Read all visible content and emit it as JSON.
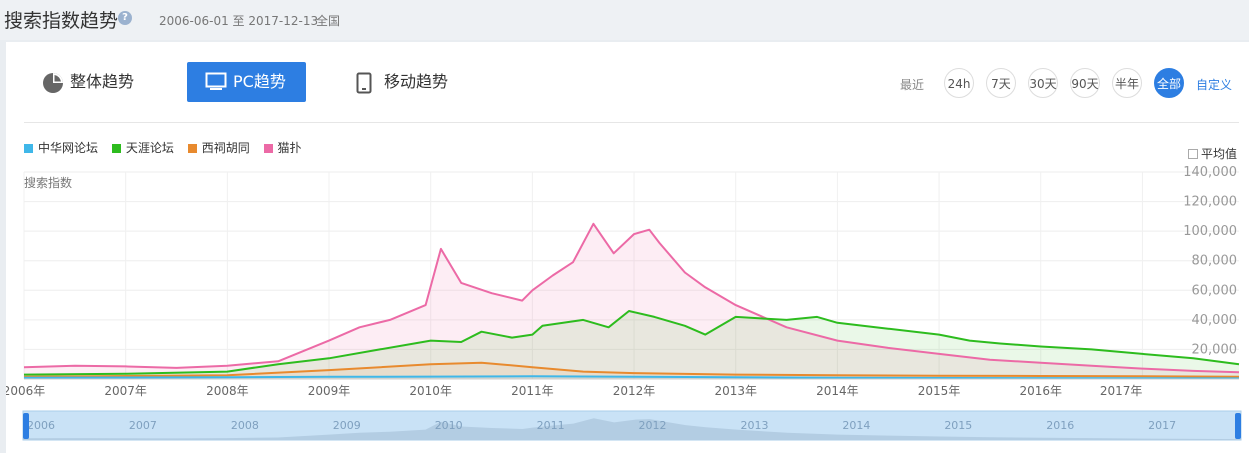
{
  "header": {
    "title": "搜索指数趋势",
    "help_icon": "question-icon",
    "date_range": "2006-06-01 至 2017-12-13",
    "region": "全国"
  },
  "tabs": [
    {
      "label": "整体趋势",
      "icon": "pie-chart-icon",
      "active": false
    },
    {
      "label": "PC趋势",
      "icon": "monitor-icon",
      "active": true
    },
    {
      "label": "移动趋势",
      "icon": "phone-icon",
      "active": false
    }
  ],
  "time_range": {
    "label": "最近",
    "buttons": [
      "24h",
      "7天",
      "30天",
      "90天",
      "半年",
      "全部"
    ],
    "selected": "全部",
    "custom": "自定义"
  },
  "average_toggle": {
    "label": "平均值",
    "checked": false
  },
  "colors": {
    "accent": "#2d7ee2",
    "中华网论坛": "#3fb7e9",
    "天涯论坛": "#2dbc1e",
    "西祠胡同": "#e88a2e",
    "猫扑": "#ec6aa6"
  },
  "chart_data": {
    "type": "area",
    "ylabel": "搜索指数",
    "ylim": [
      0,
      140000
    ],
    "yticks": [
      20000,
      40000,
      60000,
      80000,
      100000,
      120000,
      140000
    ],
    "ytick_labels": [
      "20,000",
      "40,000",
      "60,000",
      "80,000",
      "100,000",
      "120,000",
      "140,000"
    ],
    "xlim": [
      2006.0,
      2017.95
    ],
    "xtick_labels": [
      "2006年",
      "2007年",
      "2008年",
      "2009年",
      "2010年",
      "2011年",
      "2012年",
      "2013年",
      "2014年",
      "2015年",
      "2016年",
      "2017年"
    ],
    "navigator_labels": [
      "2006",
      "2007",
      "2008",
      "2009",
      "2010",
      "2011",
      "2012",
      "2013",
      "2014",
      "2015",
      "2016",
      "2017"
    ],
    "grid": true,
    "legend": "top-left",
    "series": [
      {
        "name": "中华网论坛",
        "color": "#3fb7e9",
        "points": [
          [
            2006.0,
            800
          ],
          [
            2008.0,
            1200
          ],
          [
            2009.0,
            1500
          ],
          [
            2010.0,
            1600
          ],
          [
            2011.0,
            1800
          ],
          [
            2012.0,
            1500
          ],
          [
            2013.0,
            1200
          ],
          [
            2014.0,
            800
          ],
          [
            2017.95,
            400
          ]
        ]
      },
      {
        "name": "天涯论坛",
        "color": "#2dbc1e",
        "points": [
          [
            2006.0,
            3000
          ],
          [
            2007.0,
            3500
          ],
          [
            2008.0,
            5000
          ],
          [
            2008.5,
            10000
          ],
          [
            2009.0,
            14000
          ],
          [
            2009.5,
            20000
          ],
          [
            2010.0,
            26000
          ],
          [
            2010.3,
            25000
          ],
          [
            2010.5,
            32000
          ],
          [
            2010.8,
            28000
          ],
          [
            2011.0,
            30000
          ],
          [
            2011.1,
            36000
          ],
          [
            2011.5,
            40000
          ],
          [
            2011.75,
            35000
          ],
          [
            2011.95,
            46000
          ],
          [
            2012.2,
            42000
          ],
          [
            2012.5,
            36000
          ],
          [
            2012.7,
            30000
          ],
          [
            2013.0,
            42000
          ],
          [
            2013.5,
            40000
          ],
          [
            2013.8,
            42000
          ],
          [
            2014.0,
            38000
          ],
          [
            2014.5,
            34000
          ],
          [
            2015.0,
            30000
          ],
          [
            2015.3,
            26000
          ],
          [
            2015.6,
            24000
          ],
          [
            2016.0,
            22000
          ],
          [
            2016.5,
            20000
          ],
          [
            2017.0,
            17000
          ],
          [
            2017.5,
            14000
          ],
          [
            2017.95,
            10000
          ]
        ]
      },
      {
        "name": "西祠胡同",
        "color": "#e88a2e",
        "points": [
          [
            2006.0,
            1500
          ],
          [
            2008.0,
            2500
          ],
          [
            2009.0,
            6000
          ],
          [
            2009.5,
            8000
          ],
          [
            2010.0,
            10000
          ],
          [
            2010.5,
            11000
          ],
          [
            2011.0,
            8000
          ],
          [
            2011.5,
            5000
          ],
          [
            2012.0,
            4000
          ],
          [
            2013.0,
            3000
          ],
          [
            2014.0,
            2500
          ],
          [
            2015.0,
            2200
          ],
          [
            2016.0,
            2000
          ],
          [
            2017.0,
            1800
          ],
          [
            2017.95,
            1500
          ]
        ]
      },
      {
        "name": "猫扑",
        "color": "#ec6aa6",
        "points": [
          [
            2006.0,
            8000
          ],
          [
            2006.5,
            9000
          ],
          [
            2007.0,
            8500
          ],
          [
            2007.5,
            7500
          ],
          [
            2008.0,
            9000
          ],
          [
            2008.5,
            12000
          ],
          [
            2009.0,
            26000
          ],
          [
            2009.3,
            35000
          ],
          [
            2009.6,
            40000
          ],
          [
            2009.95,
            50000
          ],
          [
            2010.1,
            88000
          ],
          [
            2010.3,
            65000
          ],
          [
            2010.6,
            58000
          ],
          [
            2010.9,
            53000
          ],
          [
            2011.0,
            60000
          ],
          [
            2011.2,
            70000
          ],
          [
            2011.4,
            79000
          ],
          [
            2011.6,
            105000
          ],
          [
            2011.8,
            85000
          ],
          [
            2012.0,
            98000
          ],
          [
            2012.15,
            101000
          ],
          [
            2012.25,
            92000
          ],
          [
            2012.5,
            72000
          ],
          [
            2012.7,
            62000
          ],
          [
            2013.0,
            50000
          ],
          [
            2013.5,
            35000
          ],
          [
            2014.0,
            26000
          ],
          [
            2014.5,
            21000
          ],
          [
            2015.0,
            17000
          ],
          [
            2015.5,
            13000
          ],
          [
            2016.0,
            11000
          ],
          [
            2016.5,
            9000
          ],
          [
            2017.0,
            7000
          ],
          [
            2017.5,
            5500
          ],
          [
            2017.95,
            4500
          ]
        ]
      }
    ]
  }
}
